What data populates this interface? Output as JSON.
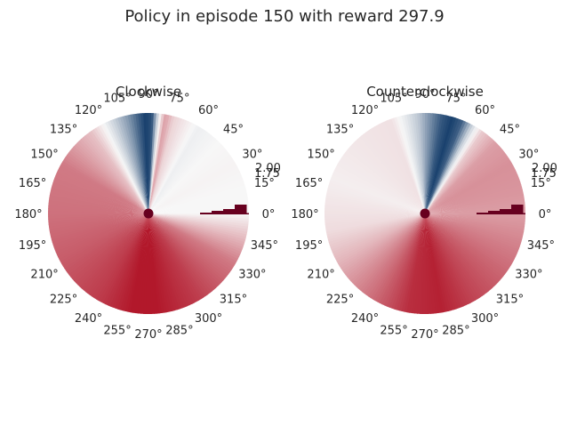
{
  "figure": {
    "title": "Policy in episode 150 with reward 297.9"
  },
  "chart_data": [
    {
      "type": "heatmap",
      "projection": "polar",
      "title": "Clockwise",
      "angle_ticks": [
        "0°",
        "15°",
        "30°",
        "45°",
        "60°",
        "75°",
        "90°",
        "105°",
        "120°",
        "135°",
        "150°",
        "165°",
        "180°",
        "195°",
        "210°",
        "225°",
        "240°",
        "255°",
        "270°",
        "285°",
        "300°",
        "315°",
        "330°",
        "345°"
      ],
      "radius_tick_labels": [
        "1.75",
        "2.00"
      ],
      "colormap": "RdBu",
      "low_color": "#b2182b",
      "mid_color": "#f7f7f7",
      "high_color": "#053061",
      "value_by_angle": {
        "angles_deg": [
          0,
          15,
          30,
          45,
          60,
          75,
          80,
          84,
          88,
          92,
          96,
          102,
          110,
          125,
          150,
          180,
          210,
          240,
          260,
          275,
          300,
          330,
          360
        ],
        "values": [
          0.5,
          0.5,
          0.49,
          0.5,
          0.52,
          0.42,
          0.3,
          0.52,
          0.92,
          0.96,
          0.88,
          0.74,
          0.6,
          0.38,
          0.22,
          0.2,
          0.15,
          0.08,
          0.0,
          0.0,
          0.08,
          0.22,
          0.5
        ]
      },
      "bars_near_0deg": [
        0.9,
        0.8,
        0.6,
        0.45
      ]
    },
    {
      "type": "heatmap",
      "projection": "polar",
      "title": "Counterclockwise",
      "angle_ticks": [
        "0°",
        "15°",
        "30°",
        "45°",
        "60°",
        "75°",
        "90°",
        "105°",
        "120°",
        "135°",
        "150°",
        "165°",
        "180°",
        "195°",
        "210°",
        "225°",
        "240°",
        "255°",
        "270°",
        "285°",
        "300°",
        "315°",
        "330°",
        "345°"
      ],
      "radius_tick_labels": [
        "1.75",
        "2.00"
      ],
      "colormap": "RdBu",
      "low_color": "#b2182b",
      "mid_color": "#f7f7f7",
      "high_color": "#053061",
      "value_by_angle": {
        "angles_deg": [
          0,
          15,
          30,
          45,
          55,
          62,
          68,
          74,
          80,
          86,
          90,
          94,
          100,
          110,
          130,
          160,
          190,
          210,
          240,
          260,
          280,
          300,
          330,
          360
        ],
        "values": [
          0.3,
          0.28,
          0.27,
          0.3,
          0.4,
          0.6,
          0.88,
          0.96,
          0.9,
          0.78,
          0.7,
          0.62,
          0.55,
          0.45,
          0.46,
          0.48,
          0.44,
          0.35,
          0.18,
          0.05,
          0.02,
          0.1,
          0.2,
          0.3
        ]
      },
      "bars_near_0deg": [
        0.9,
        0.8,
        0.6,
        0.45
      ]
    }
  ]
}
